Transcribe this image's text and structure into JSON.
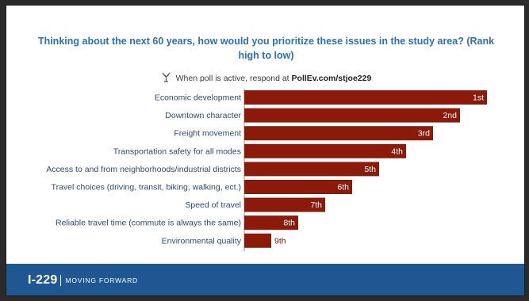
{
  "chart_data": {
    "type": "bar",
    "orientation": "horizontal",
    "title": "Thinking about the next 60 years, how would you prioritize these issues in the study area? (Rank high to low)",
    "categories": [
      "Economic development",
      "Downtown character",
      "Freight movement",
      "Transportation safety for all modes",
      "Access to and from neighborhoods/industrial districts",
      "Travel choices (driving, transit, biking, walking, ect.)",
      "Speed of travel",
      "Reliable travel time (commute is always the same)",
      "Environmental quality"
    ],
    "data_labels": [
      "1st",
      "2nd",
      "3rd",
      "4th",
      "5th",
      "6th",
      "7th",
      "8th",
      "9th"
    ],
    "values": [
      9,
      8,
      7,
      6,
      5,
      4,
      3,
      2,
      1
    ],
    "xlim": [
      0,
      9
    ],
    "bar_color": "#8b1a0a",
    "grid": false
  },
  "poll": {
    "prefix": "When poll is active, respond at",
    "link": "PollEv.com/stjoe229",
    "icon": "poll-everywhere-icon"
  },
  "footer": {
    "brand_number": "I-229",
    "brand_tagline": "MOVING FORWARD",
    "color": "#1f5793"
  }
}
